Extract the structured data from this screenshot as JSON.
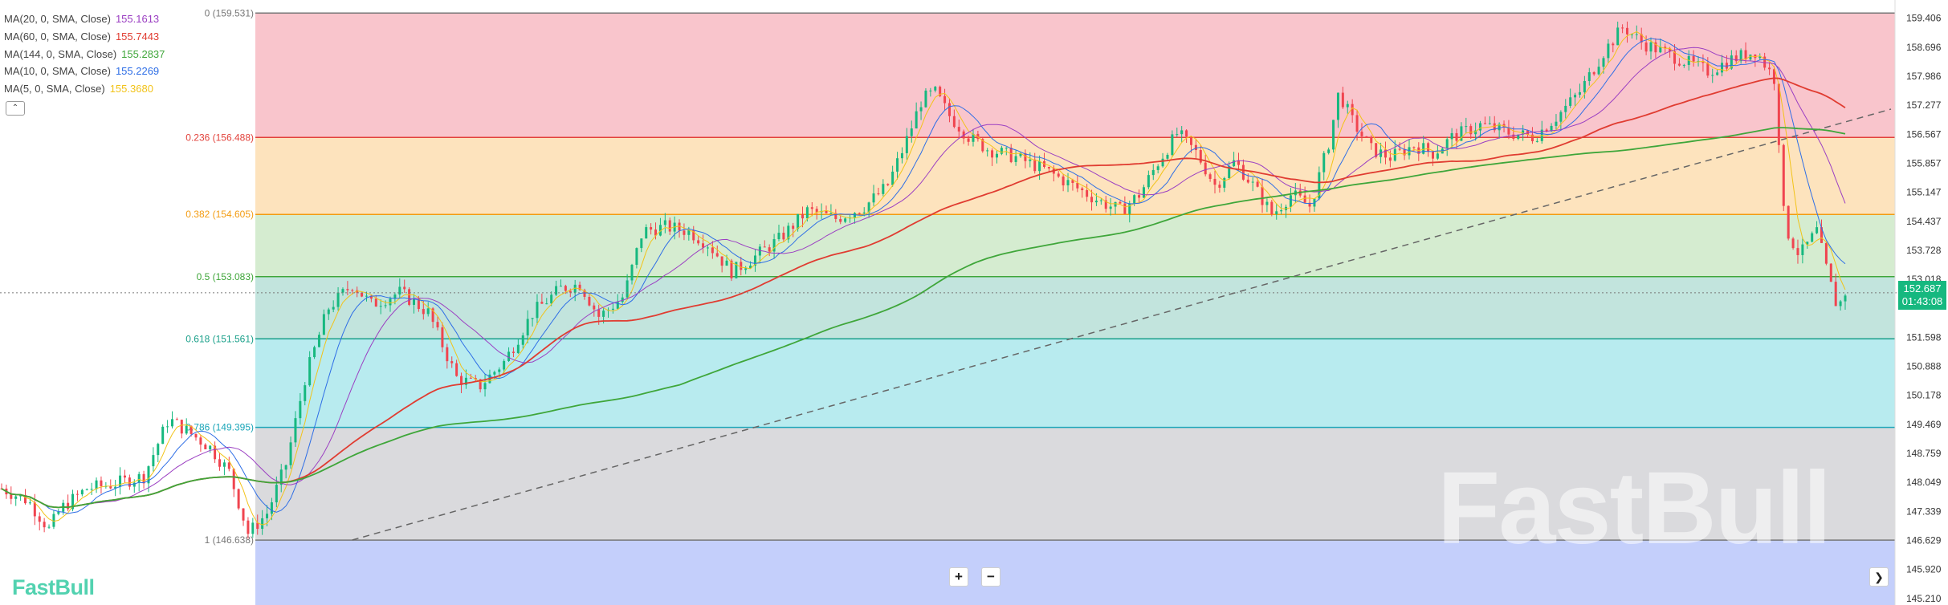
{
  "legend": [
    {
      "label": "MA(20, 0, SMA, Close)",
      "value": "155.1613",
      "color": "#9b3fc2"
    },
    {
      "label": "MA(60, 0, SMA, Close)",
      "value": "155.7443",
      "color": "#e03c31"
    },
    {
      "label": "MA(144, 0, SMA, Close)",
      "value": "155.2837",
      "color": "#3fa63a"
    },
    {
      "label": "MA(10, 0, SMA, Close)",
      "value": "155.2269",
      "color": "#2e6ee6"
    },
    {
      "label": "MA(5, 0, SMA, Close)",
      "value": "155.3680",
      "color": "#f2c319"
    }
  ],
  "collapse_icon": "chevron-up-icon",
  "zoom_in_label": "+",
  "zoom_out_label": "−",
  "next_icon": "chevron-right-icon",
  "logo_text": "FastBull",
  "watermark_text": "FastBull",
  "price_tag": {
    "price": "152.687",
    "countdown": "01:43:08"
  },
  "colors": {
    "up": "#16b87f",
    "down": "#f0444f",
    "dashed_trend": "#666666",
    "bands": [
      "#f9c5cc",
      "#fde3bd",
      "#d5ecd0",
      "#c2e4dd",
      "#b8ebef",
      "#dadadd",
      "#c4cffb"
    ],
    "fib_lines": [
      "#777777",
      "#e2423b",
      "#f39c12",
      "#3fa63a",
      "#1aa08a",
      "#1aa5b8",
      "#777777"
    ]
  },
  "chart_data": {
    "type": "candlestick",
    "y_axis_ticks": [
      "159.406",
      "158.696",
      "157.986",
      "157.277",
      "156.567",
      "155.857",
      "155.147",
      "154.437",
      "153.728",
      "153.018",
      "151.598",
      "150.888",
      "150.178",
      "149.469",
      "148.759",
      "148.049",
      "147.339",
      "146.629",
      "145.920",
      "145.210"
    ],
    "ylim": [
      145.05,
      159.85
    ],
    "fib_levels": [
      {
        "ratio": 0,
        "label": "0 (159.531)",
        "price": 159.531
      },
      {
        "ratio": 0.236,
        "label": "0.236 (156.488)",
        "price": 156.488
      },
      {
        "ratio": 0.382,
        "label": "0.382 (154.605)",
        "price": 154.605
      },
      {
        "ratio": 0.5,
        "label": "0.5 (153.083)",
        "price": 153.083
      },
      {
        "ratio": 0.618,
        "label": "0.618 (151.561)",
        "price": 151.561
      },
      {
        "ratio": 0.786,
        "label": "0.786 (149.395)",
        "price": 149.395
      },
      {
        "ratio": 1,
        "label": "1 (146.638)",
        "price": 146.638
      }
    ],
    "last_price": 152.687,
    "trendline": {
      "from": {
        "bar": 0.13,
        "price": 146.64
      },
      "to": {
        "bar": 0.97,
        "price": 157.18
      }
    },
    "price_path": [
      [
        0.0,
        147.9
      ],
      [
        0.014,
        147.6
      ],
      [
        0.025,
        146.9
      ],
      [
        0.031,
        147.4
      ],
      [
        0.045,
        147.9
      ],
      [
        0.058,
        148.0
      ],
      [
        0.075,
        148.2
      ],
      [
        0.088,
        149.6
      ],
      [
        0.098,
        149.3
      ],
      [
        0.11,
        148.9
      ],
      [
        0.12,
        148.3
      ],
      [
        0.13,
        146.8
      ],
      [
        0.14,
        147.3
      ],
      [
        0.15,
        148.5
      ],
      [
        0.16,
        150.6
      ],
      [
        0.172,
        152.3
      ],
      [
        0.185,
        152.9
      ],
      [
        0.195,
        152.4
      ],
      [
        0.21,
        152.7
      ],
      [
        0.225,
        152.2
      ],
      [
        0.24,
        150.6
      ],
      [
        0.252,
        150.4
      ],
      [
        0.265,
        151.0
      ],
      [
        0.28,
        152.2
      ],
      [
        0.295,
        152.8
      ],
      [
        0.305,
        152.9
      ],
      [
        0.315,
        152.1
      ],
      [
        0.328,
        152.6
      ],
      [
        0.338,
        154.2
      ],
      [
        0.35,
        154.3
      ],
      [
        0.362,
        154.2
      ],
      [
        0.372,
        153.9
      ],
      [
        0.385,
        153.2
      ],
      [
        0.395,
        153.5
      ],
      [
        0.41,
        154.0
      ],
      [
        0.425,
        154.7
      ],
      [
        0.44,
        154.5
      ],
      [
        0.455,
        154.8
      ],
      [
        0.467,
        155.3
      ],
      [
        0.477,
        156.4
      ],
      [
        0.485,
        157.4
      ],
      [
        0.492,
        157.6
      ],
      [
        0.5,
        157.0
      ],
      [
        0.51,
        156.5
      ],
      [
        0.52,
        156.2
      ],
      [
        0.535,
        156.0
      ],
      [
        0.55,
        155.7
      ],
      [
        0.565,
        155.3
      ],
      [
        0.58,
        154.9
      ],
      [
        0.59,
        154.7
      ],
      [
        0.6,
        155.1
      ],
      [
        0.61,
        155.9
      ],
      [
        0.62,
        156.6
      ],
      [
        0.63,
        156.1
      ],
      [
        0.64,
        155.3
      ],
      [
        0.65,
        155.9
      ],
      [
        0.66,
        155.3
      ],
      [
        0.67,
        154.6
      ],
      [
        0.68,
        155.1
      ],
      [
        0.69,
        154.8
      ],
      [
        0.7,
        156.4
      ],
      [
        0.705,
        157.6
      ],
      [
        0.712,
        156.9
      ],
      [
        0.722,
        156.2
      ],
      [
        0.732,
        156.0
      ],
      [
        0.745,
        156.3
      ],
      [
        0.755,
        156.1
      ],
      [
        0.765,
        156.5
      ],
      [
        0.78,
        156.8
      ],
      [
        0.795,
        156.6
      ],
      [
        0.808,
        156.5
      ],
      [
        0.82,
        157.0
      ],
      [
        0.832,
        157.6
      ],
      [
        0.845,
        158.6
      ],
      [
        0.855,
        159.2
      ],
      [
        0.865,
        158.8
      ],
      [
        0.875,
        158.6
      ],
      [
        0.89,
        158.3
      ],
      [
        0.9,
        158.1
      ],
      [
        0.912,
        158.4
      ],
      [
        0.925,
        158.6
      ],
      [
        0.935,
        157.9
      ],
      [
        0.94,
        154.3
      ],
      [
        0.948,
        153.6
      ],
      [
        0.957,
        154.2
      ],
      [
        0.963,
        153.1
      ],
      [
        0.968,
        152.3
      ],
      [
        0.972,
        152.7
      ]
    ]
  }
}
